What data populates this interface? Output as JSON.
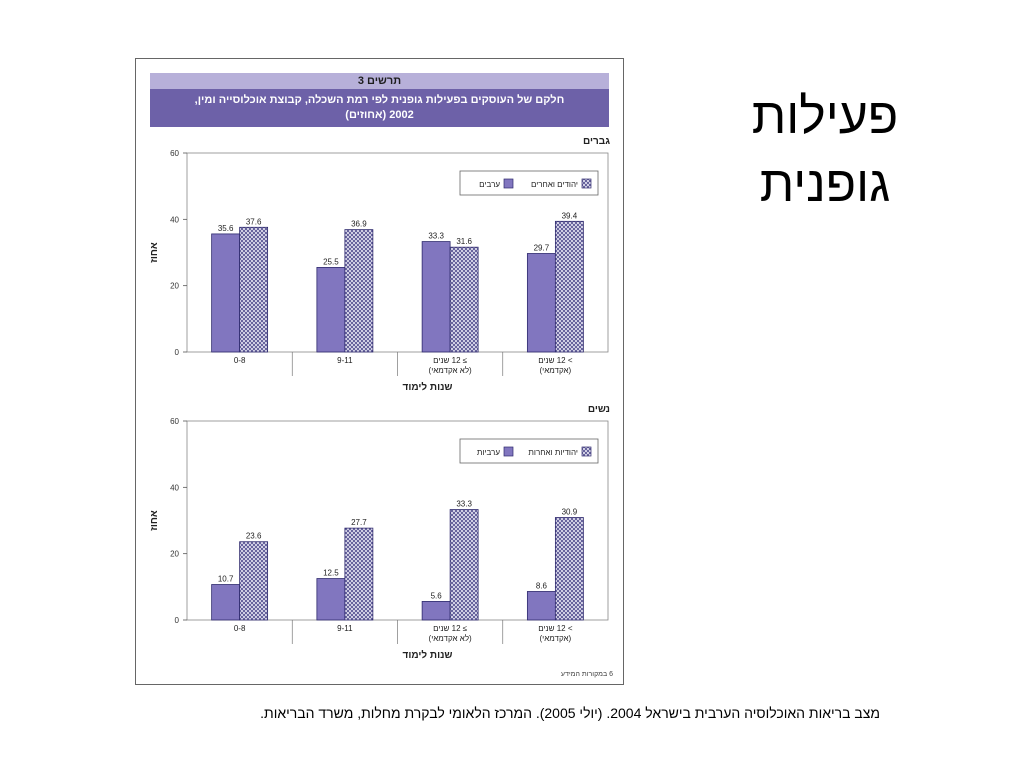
{
  "slide": {
    "title_lines": [
      "פעילות",
      "גופנית"
    ],
    "citation": "מצב בריאות האוכלוסיה הערבית בישראל 2004. (יולי 2005). המרכז הלאומי לבקרת מחלות, משרד הבריאות."
  },
  "figure": {
    "number": "תרשים 3",
    "title_lines": [
      "חלקם של העוסקים בפעילות גופנית לפי רמת השכלה, קבוצת אוכלוסייה ומין,",
      "2002 (אחוזים)"
    ],
    "source_note": "6 במקורות המידע"
  },
  "colors": {
    "arab_fill": "#8176bf",
    "jewish_fill": "#e4e3f1",
    "hatch": "#3d3880",
    "header_light": "#b7b0d9",
    "header_dark": "#6d61a8"
  },
  "chart_data": [
    {
      "type": "bar",
      "title": "גברים",
      "categories": [
        [
          "0-8"
        ],
        [
          "9-11"
        ],
        [
          "≥ 12 שנים",
          "(לא אקדמאי)"
        ],
        [
          "> 12 שנים",
          "(אקדמאי)"
        ]
      ],
      "series": [
        {
          "name": "ערבים",
          "values": [
            35.6,
            25.5,
            33.3,
            29.7
          ]
        },
        {
          "name": "יהודים ואחרים",
          "values": [
            37.6,
            36.9,
            31.6,
            39.4
          ]
        }
      ],
      "xlabel": "שנות לימוד",
      "ylabel": "אחוז",
      "ylim": [
        0,
        60
      ],
      "yticks": [
        0,
        20,
        40,
        60
      ],
      "legend": "top-right",
      "grid": false
    },
    {
      "type": "bar",
      "title": "נשים",
      "categories": [
        [
          "0-8"
        ],
        [
          "9-11"
        ],
        [
          "≥ 12 שנים",
          "(לא אקדמאי)"
        ],
        [
          "> 12 שנים",
          "(אקדמאי)"
        ]
      ],
      "series": [
        {
          "name": "ערביות",
          "values": [
            10.7,
            12.5,
            5.6,
            8.6
          ]
        },
        {
          "name": "יהודיות ואחרות",
          "values": [
            23.6,
            27.7,
            33.3,
            30.9
          ]
        }
      ],
      "xlabel": "שנות לימוד",
      "ylabel": "אחוז",
      "ylim": [
        0,
        60
      ],
      "yticks": [
        0,
        20,
        40,
        60
      ],
      "legend": "top-right",
      "grid": false
    }
  ]
}
